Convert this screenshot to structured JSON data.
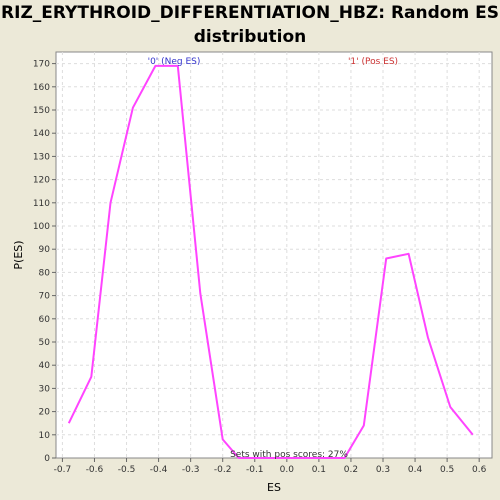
{
  "chart_data": {
    "type": "line",
    "title_line1": "RIZ_ERYTHROID_DIFFERENTIATION_HBZ: Random ES",
    "title_line2": "distribution",
    "xlabel": "ES",
    "ylabel": "P(ES)",
    "xlim": [
      -0.72,
      0.64
    ],
    "ylim": [
      0,
      175
    ],
    "x_ticks": [
      -0.7,
      -0.6,
      -0.5,
      -0.4,
      -0.3,
      -0.2,
      -0.1,
      0.0,
      0.1,
      0.2,
      0.3,
      0.4,
      0.5,
      0.6
    ],
    "x_tick_labels": [
      "-0.7",
      "-0.6",
      "-0.5",
      "-0.4",
      "-0.3",
      "-0.2",
      "-0.1",
      "0.0",
      "0.1",
      "0.2",
      "0.3",
      "0.4",
      "0.5",
      "0.6"
    ],
    "y_ticks": [
      0,
      10,
      20,
      30,
      40,
      50,
      60,
      70,
      80,
      90,
      100,
      110,
      120,
      130,
      140,
      150,
      160,
      170
    ],
    "y_tick_labels": [
      "0",
      "10",
      "20",
      "30",
      "40",
      "50",
      "60",
      "70",
      "80",
      "90",
      "100",
      "110",
      "120",
      "130",
      "140",
      "150",
      "160",
      "170"
    ],
    "grid": true,
    "series": [
      {
        "color": "#ff44ff",
        "x": [
          -0.68,
          -0.61,
          -0.55,
          -0.48,
          -0.41,
          -0.34,
          -0.27,
          -0.2,
          -0.15,
          0.0,
          0.18,
          0.24,
          0.31,
          0.38,
          0.44,
          0.51,
          0.58
        ],
        "y": [
          15,
          35,
          110,
          151,
          169,
          169,
          71,
          8,
          0,
          0,
          0,
          14,
          86,
          88,
          52,
          22,
          10
        ]
      }
    ],
    "annotations": {
      "neg": "'0' (Neg ES)",
      "pos": "'1' (Pos ES)",
      "pos_scores": "Sets with pos scores: 27%"
    }
  }
}
